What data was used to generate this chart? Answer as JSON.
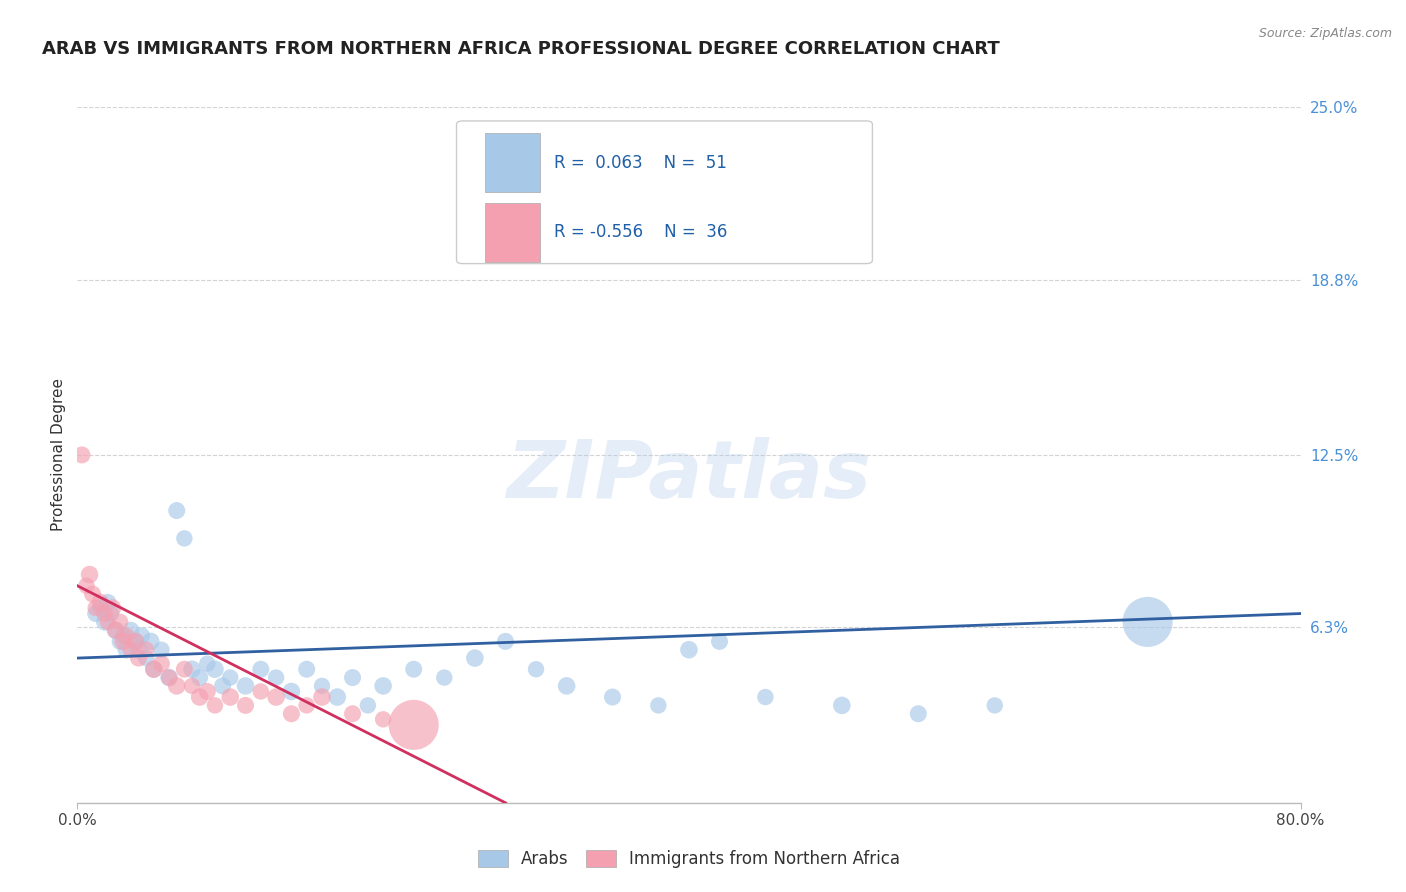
{
  "title": "ARAB VS IMMIGRANTS FROM NORTHERN AFRICA PROFESSIONAL DEGREE CORRELATION CHART",
  "source_text": "Source: ZipAtlas.com",
  "ylabel": "Professional Degree",
  "watermark": "ZIPatlas",
  "xlim": [
    0.0,
    80.0
  ],
  "ylim": [
    0.0,
    25.0
  ],
  "x_ticks": [
    0.0,
    80.0
  ],
  "x_tick_labels": [
    "0.0%",
    "80.0%"
  ],
  "y_ticks": [
    0.0,
    6.3,
    12.5,
    18.8,
    25.0
  ],
  "y_tick_labels": [
    "",
    "6.3%",
    "12.5%",
    "18.8%",
    "25.0%"
  ],
  "grid_color": "#c8c8c8",
  "background_color": "#ffffff",
  "blue_color": "#a8c8e8",
  "pink_color": "#f4a0b0",
  "blue_line_color": "#3060a0",
  "pink_line_color": "#d03060",
  "legend_R1": "0.063",
  "legend_N1": "51",
  "legend_R2": "-0.556",
  "legend_N2": "36",
  "legend_label1": "Arabs",
  "legend_label2": "Immigrants from Northern Africa",
  "title_fontsize": 13,
  "axis_label_fontsize": 11,
  "tick_fontsize": 11,
  "blue_scatter_x": [
    1.2,
    1.5,
    1.8,
    2.0,
    2.2,
    2.5,
    2.8,
    3.0,
    3.2,
    3.5,
    3.8,
    4.0,
    4.2,
    4.5,
    4.8,
    5.0,
    5.5,
    6.0,
    6.5,
    7.0,
    7.5,
    8.0,
    8.5,
    9.0,
    9.5,
    10.0,
    11.0,
    12.0,
    13.0,
    14.0,
    15.0,
    16.0,
    17.0,
    18.0,
    19.0,
    20.0,
    22.0,
    24.0,
    26.0,
    28.0,
    30.0,
    32.0,
    35.0,
    38.0,
    40.0,
    42.0,
    45.0,
    50.0,
    55.0,
    60.0,
    70.0
  ],
  "blue_scatter_y": [
    6.8,
    7.0,
    6.5,
    7.2,
    6.8,
    6.2,
    5.8,
    6.0,
    5.5,
    6.2,
    5.8,
    5.5,
    6.0,
    5.2,
    5.8,
    4.8,
    5.5,
    4.5,
    10.5,
    9.5,
    4.8,
    4.5,
    5.0,
    4.8,
    4.2,
    4.5,
    4.2,
    4.8,
    4.5,
    4.0,
    4.8,
    4.2,
    3.8,
    4.5,
    3.5,
    4.2,
    4.8,
    4.5,
    5.2,
    5.8,
    4.8,
    4.2,
    3.8,
    3.5,
    5.5,
    5.8,
    3.8,
    3.5,
    3.2,
    3.5,
    6.5
  ],
  "blue_scatter_size": [
    30,
    28,
    32,
    30,
    28,
    32,
    30,
    28,
    32,
    30,
    28,
    32,
    30,
    28,
    32,
    30,
    28,
    32,
    30,
    28,
    32,
    30,
    28,
    32,
    30,
    28,
    32,
    30,
    28,
    32,
    30,
    28,
    32,
    30,
    28,
    32,
    30,
    28,
    32,
    30,
    28,
    32,
    30,
    28,
    32,
    30,
    28,
    32,
    30,
    28,
    260
  ],
  "pink_scatter_x": [
    0.3,
    0.6,
    0.8,
    1.0,
    1.2,
    1.5,
    1.8,
    2.0,
    2.3,
    2.5,
    2.8,
    3.0,
    3.2,
    3.5,
    3.8,
    4.0,
    4.5,
    5.0,
    5.5,
    6.0,
    6.5,
    7.0,
    7.5,
    8.0,
    8.5,
    9.0,
    10.0,
    11.0,
    12.0,
    13.0,
    14.0,
    15.0,
    16.0,
    18.0,
    20.0,
    22.0
  ],
  "pink_scatter_y": [
    12.5,
    7.8,
    8.2,
    7.5,
    7.0,
    7.2,
    6.8,
    6.5,
    7.0,
    6.2,
    6.5,
    5.8,
    6.0,
    5.5,
    5.8,
    5.2,
    5.5,
    4.8,
    5.0,
    4.5,
    4.2,
    4.8,
    4.2,
    3.8,
    4.0,
    3.5,
    3.8,
    3.5,
    4.0,
    3.8,
    3.2,
    3.5,
    3.8,
    3.2,
    3.0,
    2.8
  ],
  "pink_scatter_size": [
    30,
    28,
    32,
    30,
    28,
    32,
    30,
    28,
    32,
    30,
    28,
    32,
    30,
    28,
    32,
    30,
    28,
    32,
    30,
    28,
    32,
    30,
    28,
    32,
    30,
    28,
    32,
    30,
    28,
    32,
    30,
    28,
    32,
    30,
    28,
    260
  ],
  "blue_line_x": [
    0.0,
    80.0
  ],
  "blue_line_y": [
    5.2,
    6.8
  ],
  "pink_line_x": [
    0.0,
    28.0
  ],
  "pink_line_y": [
    7.8,
    0.0
  ]
}
